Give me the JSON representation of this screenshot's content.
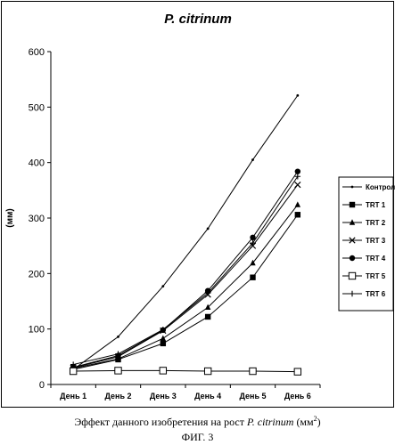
{
  "chart_data": {
    "type": "line",
    "title": "P. citrinum",
    "ylabel": "(мм)",
    "xlabel": "",
    "categories": [
      "День 1",
      "День 2",
      "День 3",
      "День 4",
      "День 5",
      "День 6"
    ],
    "ylim": [
      0,
      600
    ],
    "yticks": [
      "0",
      "100",
      "200",
      "300",
      "400",
      "500",
      "600"
    ],
    "grid": false,
    "legend": "right",
    "series": [
      {
        "name": "Контрол",
        "marker": "dot",
        "values": [
          27,
          86,
          177,
          281,
          405,
          521
        ]
      },
      {
        "name": "TRT 1",
        "marker": "square",
        "values": [
          27,
          45,
          74,
          122,
          193,
          306
        ]
      },
      {
        "name": "TRT 2",
        "marker": "triangle",
        "values": [
          29,
          46,
          83,
          139,
          219,
          324
        ]
      },
      {
        "name": "TRT 3",
        "marker": "x",
        "values": [
          30,
          50,
          97,
          162,
          250,
          360
        ]
      },
      {
        "name": "TRT 4",
        "marker": "circle",
        "values": [
          31,
          52,
          98,
          169,
          265,
          384
        ]
      },
      {
        "name": "TRT 5",
        "marker": "open-square",
        "values": [
          24,
          25,
          25,
          24,
          24,
          23
        ]
      },
      {
        "name": "TRT 6",
        "marker": "plus",
        "values": [
          36,
          55,
          99,
          165,
          255,
          375
        ]
      }
    ]
  },
  "caption": {
    "prefix": "Эффект данного изобретения на рост ",
    "species": "P. citrinum",
    "unit": " (мм",
    "unit_sup": "2",
    "unit_close": ")",
    "figure": "ФИГ. 3"
  }
}
